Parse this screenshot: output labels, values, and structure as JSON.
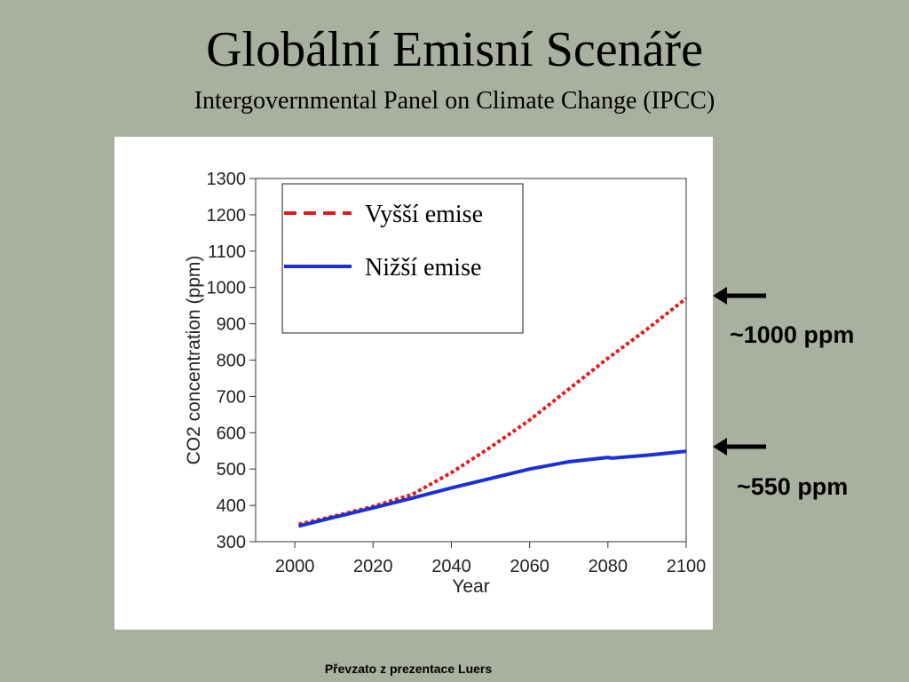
{
  "slide": {
    "title": "Globální Emisní Scenáře",
    "subtitle": "Intergovernmental Panel on Climate Change (IPCC)",
    "footer": "Převzato z prezentace Luers"
  },
  "annotations": {
    "high": "~1000 ppm",
    "low": "~550 ppm"
  },
  "chart_data": {
    "type": "line",
    "xlabel": "Year",
    "ylabel": "CO2 concentration (ppm)",
    "xlim": [
      1990,
      2100
    ],
    "ylim": [
      300,
      1300
    ],
    "x_ticks": [
      2000,
      2020,
      2040,
      2060,
      2080,
      2100
    ],
    "y_ticks": [
      300,
      400,
      500,
      600,
      700,
      800,
      900,
      1000,
      1100,
      1200,
      1300
    ],
    "legend_position": "top-left",
    "grid": false,
    "series": [
      {
        "name": "Vyšší emise",
        "color": "#e41a1c",
        "style": "dotted",
        "x": [
          2001,
          2010,
          2020,
          2030,
          2040,
          2050,
          2060,
          2070,
          2080,
          2090,
          2100
        ],
        "y": [
          348,
          370,
          397,
          430,
          490,
          560,
          635,
          720,
          805,
          885,
          970
        ]
      },
      {
        "name": "Nižší emise",
        "color": "#1a2fd8",
        "style": "solid",
        "x": [
          2001,
          2010,
          2020,
          2030,
          2040,
          2050,
          2060,
          2070,
          2080,
          2081,
          2090,
          2100
        ],
        "y": [
          343,
          367,
          393,
          420,
          448,
          474,
          500,
          520,
          532,
          530,
          538,
          549
        ]
      }
    ]
  }
}
